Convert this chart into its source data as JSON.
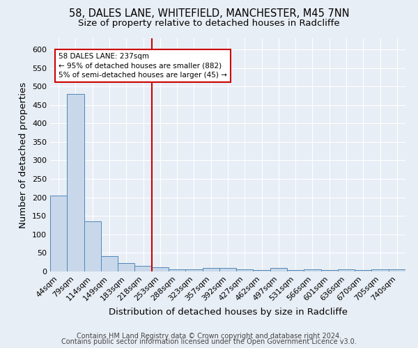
{
  "title_line1": "58, DALES LANE, WHITEFIELD, MANCHESTER, M45 7NN",
  "title_line2": "Size of property relative to detached houses in Radcliffe",
  "xlabel": "Distribution of detached houses by size in Radcliffe",
  "ylabel": "Number of detached properties",
  "categories": [
    "44sqm",
    "79sqm",
    "114sqm",
    "149sqm",
    "183sqm",
    "218sqm",
    "253sqm",
    "288sqm",
    "323sqm",
    "357sqm",
    "392sqm",
    "427sqm",
    "462sqm",
    "497sqm",
    "531sqm",
    "566sqm",
    "601sqm",
    "636sqm",
    "670sqm",
    "705sqm",
    "740sqm"
  ],
  "values": [
    205,
    480,
    135,
    42,
    23,
    15,
    12,
    5,
    5,
    10,
    10,
    5,
    3,
    10,
    3,
    5,
    3,
    5,
    3,
    5,
    5
  ],
  "bar_color": "#c8d8ea",
  "bar_edge_color": "#4f86b8",
  "red_line_index": 6,
  "red_line_color": "#cc0000",
  "annotation_text": "58 DALES LANE: 237sqm\n← 95% of detached houses are smaller (882)\n5% of semi-detached houses are larger (45) →",
  "annotation_box_color": "#ffffff",
  "annotation_box_edge": "#cc0000",
  "ylim": [
    0,
    630
  ],
  "yticks": [
    0,
    50,
    100,
    150,
    200,
    250,
    300,
    350,
    400,
    450,
    500,
    550,
    600
  ],
  "footer_line1": "Contains HM Land Registry data © Crown copyright and database right 2024.",
  "footer_line2": "Contains public sector information licensed under the Open Government Licence v3.0.",
  "bg_color": "#e8eef5",
  "plot_bg_color": "#e8eef5",
  "title_fontsize": 10.5,
  "subtitle_fontsize": 9.5,
  "axis_label_fontsize": 9.5,
  "tick_fontsize": 8,
  "annotation_fontsize": 7.5,
  "footer_fontsize": 7
}
